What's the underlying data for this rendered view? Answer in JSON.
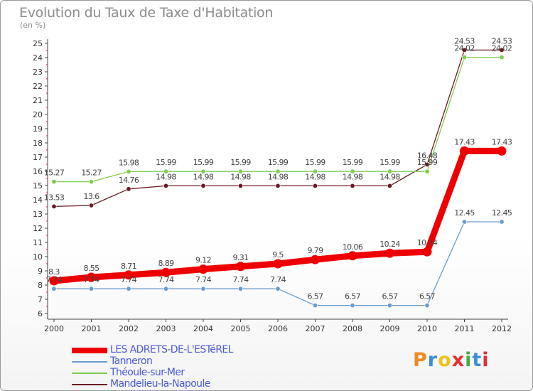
{
  "title": "Evolution du Taux de Taxe d'Habitation",
  "unit": "(en %)",
  "logo": [
    "P",
    "r",
    "o",
    "x",
    "i",
    "t",
    "i"
  ],
  "logo_colors": [
    "#f08a20",
    "#3a8fd8",
    "#f0c020",
    "#e23030",
    "#4aa84a",
    "#3a8fd8",
    "#e23030"
  ],
  "chart_data": {
    "type": "line",
    "x": [
      "2000",
      "2001",
      "2002",
      "2003",
      "2004",
      "2005",
      "2006",
      "2007",
      "2008",
      "2009",
      "2010",
      "2011",
      "2012"
    ],
    "ylim": [
      6,
      25
    ],
    "yticks": [
      6,
      7,
      8,
      9,
      10,
      11,
      12,
      13,
      14,
      15,
      16,
      17,
      18,
      19,
      20,
      21,
      22,
      23,
      24,
      25
    ],
    "grid": false,
    "legend_position": "bottom-left",
    "series": [
      {
        "name": "LES ADRETS-DE-L'ESTéREL",
        "color": "#ee0000",
        "width": 9,
        "values": [
          8.3,
          8.55,
          8.71,
          8.89,
          9.12,
          9.31,
          9.5,
          9.79,
          10.06,
          10.24,
          10.34,
          17.43,
          17.43
        ],
        "labels": [
          "8.3",
          "8.55",
          "8.71",
          "8.89",
          "9.12",
          "9.31",
          "9.5",
          "9.79",
          "10.06",
          "10.24",
          "10.34",
          "17.43",
          "17.43"
        ]
      },
      {
        "name": "Tanneron",
        "color": "#6a9ccc",
        "width": 1.3,
        "values": [
          7.74,
          7.74,
          7.74,
          7.74,
          7.74,
          7.74,
          7.74,
          6.57,
          6.57,
          6.57,
          6.57,
          12.45,
          12.45
        ],
        "labels": [
          "7.74",
          "7.74",
          "7.74",
          "7.74",
          "7.74",
          "7.74",
          "7.74",
          "6.57",
          "6.57",
          "6.57",
          "6.57",
          "12.45",
          "12.45"
        ]
      },
      {
        "name": "Théoule-sur-Mer",
        "color": "#7fcc50",
        "width": 1.3,
        "values": [
          15.27,
          15.27,
          15.98,
          15.99,
          15.99,
          15.99,
          15.99,
          15.99,
          15.99,
          15.99,
          15.99,
          24.02,
          24.02
        ],
        "labels": [
          "15.27",
          "15.27",
          "15.98",
          "15.99",
          "15.99",
          "15.99",
          "15.99",
          "15.99",
          "15.99",
          "15.99",
          "15.99",
          "24.02",
          "24.02"
        ]
      },
      {
        "name": "Mandelieu-la-Napoule",
        "color": "#6a1a22",
        "width": 1.3,
        "values": [
          13.53,
          13.6,
          14.76,
          14.98,
          14.98,
          14.98,
          14.98,
          14.98,
          14.98,
          14.98,
          16.48,
          24.53,
          24.53
        ],
        "labels": [
          "13.53",
          "13.6",
          "14.76",
          "14.98",
          "14.98",
          "14.98",
          "14.98",
          "14.98",
          "14.98",
          "14.98",
          "16.48",
          "24.53",
          "24.53"
        ]
      }
    ]
  }
}
